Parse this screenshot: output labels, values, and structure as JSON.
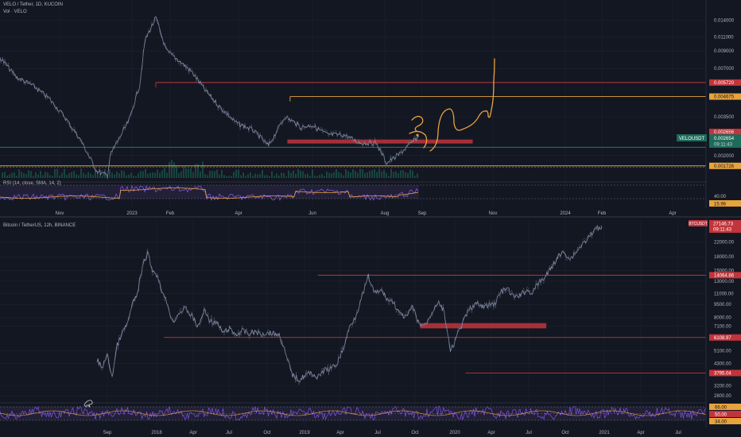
{
  "top_panel": {
    "title": "VELO / Tether, 1D, KUCOIN",
    "volume_label": "Vol · VELO",
    "rsi_label": "RSI (14, close, SMA, 14, 2)",
    "symbol_tag": "VELOUSDT",
    "last_price_tag": "0.002654",
    "countdown_tag": "09:11:43",
    "rsi_value_tag": "15.96",
    "rsi_level_label": "40.00"
  },
  "bottom_panel": {
    "title": "Bitcoin / TetherUS, 12h, BINANCE",
    "symbol_tag": "BTCUSDT",
    "last_price_tag": "27146.73",
    "countdown_tag": "09:11:43",
    "rsi_tags": [
      "66.00",
      "50.00",
      "34.00"
    ]
  },
  "colors": {
    "background": "#131722",
    "grid": "#1f2330",
    "axis_text": "#b2b5be",
    "price_line": "#7f8ba6",
    "red_level": "#c2343b",
    "orange_level": "#e8a33c",
    "support_box": "#c2343b",
    "rsi_line": "#8b5cf6",
    "rsi_sma": "#e8a33c",
    "rsi_band": "#2a2540",
    "volume_bar": "#1e6b5a"
  },
  "chart_data": [
    {
      "type": "line",
      "title": "VELO / Tether, 1D, KUCOIN",
      "scale": "log",
      "x_ticks": [
        "Nov",
        "2023",
        "Feb",
        "Apr",
        "Jun",
        "Aug",
        "Sep",
        "Nov",
        "2024",
        "Feb",
        "Apr"
      ],
      "y_ticks": [
        "0.014000",
        "0.011000",
        "0.009000",
        "0.007000",
        "0.005720",
        "0.004675",
        "0.003500",
        "0.002656",
        "0.002654",
        "0.002000",
        "0.001726"
      ],
      "ylim": [
        0.00145,
        0.0175
      ],
      "x_months": [
        0,
        12.5
      ],
      "series": [
        {
          "x": [
            0,
            0.3,
            0.6,
            0.9,
            1.2,
            1.5,
            1.8,
            2.0,
            2.05,
            2.2,
            2.4,
            2.6,
            2.7,
            2.9,
            3.1,
            3.3,
            3.5,
            3.6,
            3.8,
            4.1,
            4.4,
            4.7,
            5.0,
            5.3,
            5.5,
            5.6,
            5.8,
            6.1,
            6.4,
            6.7,
            7.0,
            7.2,
            7.4,
            7.6,
            7.8
          ],
          "values": [
            0.0082,
            0.0062,
            0.0055,
            0.0046,
            0.0035,
            0.0025,
            0.0016,
            0.0015,
            0.002,
            0.0025,
            0.0033,
            0.0055,
            0.0105,
            0.0145,
            0.009,
            0.008,
            0.007,
            0.0065,
            0.0052,
            0.004,
            0.0032,
            0.0029,
            0.0023,
            0.0035,
            0.0032,
            0.003,
            0.0031,
            0.0027,
            0.0027,
            0.0024,
            0.0024,
            0.0018,
            0.002,
            0.0023,
            0.00265
          ]
        }
      ],
      "levels": [
        {
          "value": 0.00572,
          "label": "0.005720",
          "color": "red",
          "x_start": 2.9
        },
        {
          "value": 0.004675,
          "label": "0.004675",
          "color": "orange",
          "x_start": 5.4
        },
        {
          "value": 0.001726,
          "label": "0.001726",
          "color": "orange",
          "x_start": 0
        }
      ],
      "support_zone": {
        "low": 0.00239,
        "high": 0.00252,
        "x_start": 5.35,
        "x_end": 8.8
      },
      "rsi": {
        "upper": 70,
        "lower": 30,
        "last": 15.96
      }
    },
    {
      "type": "line",
      "title": "Bitcoin / TetherUS, 12h, BINANCE",
      "scale": "log",
      "x_ticks": [
        "Sep",
        "2018",
        "Apr",
        "Jul",
        "Oct",
        "2019",
        "Apr",
        "Jul",
        "Oct",
        "2020",
        "Apr",
        "Jul",
        "Oct",
        "2021",
        "Apr",
        "Jul",
        "Oct"
      ],
      "y_ticks": [
        "22000.00",
        "18000.00",
        "15000.00",
        "14064.86",
        "13000.00",
        "11000.00",
        "9500.00",
        "8000.00",
        "7100.00",
        "6108.97",
        "5100.00",
        "4300.00",
        "3795.04",
        "3200.00",
        "2800.00"
      ],
      "ylim": [
        2600,
        28500
      ],
      "x_months": [
        0,
        50
      ],
      "series": [
        {
          "x": [
            0,
            0.4,
            0.8,
            1.2,
            1.6,
            2.0,
            2.4,
            2.8,
            3.2,
            3.6,
            4.0,
            4.4,
            4.8,
            5.2,
            5.6,
            6.0,
            6.5,
            7.0,
            7.5,
            8.0,
            8.5,
            9.0,
            9.5,
            10.0,
            10.5,
            11.0,
            11.5,
            12.0,
            12.5,
            13.0,
            13.5,
            14.0,
            14.5,
            15.0,
            15.5,
            16.0,
            16.5,
            17.0,
            17.5,
            18.0,
            18.5,
            19.0,
            19.5,
            20.0,
            20.5,
            21.0,
            21.5,
            22.0,
            22.5,
            23.0,
            23.5,
            24.0,
            24.5,
            25.0,
            25.5,
            26.0,
            26.5,
            27.0,
            27.5,
            28.0,
            28.5,
            29.0,
            29.5,
            30.0,
            30.5,
            31.0,
            31.5,
            32.0,
            32.5,
            33.0,
            33.5,
            34.0,
            34.5,
            35.0,
            35.5,
            36.0,
            36.5,
            37.0,
            37.5,
            38.0,
            38.5,
            39.0,
            39.5,
            40.0
          ],
          "values": [
            4500,
            4100,
            4800,
            3600,
            5500,
            6500,
            7300,
            9500,
            11000,
            15500,
            19000,
            15000,
            14000,
            11000,
            9500,
            7500,
            8500,
            9000,
            8200,
            7000,
            8800,
            7600,
            7400,
            6500,
            6900,
            6300,
            6700,
            6400,
            6600,
            6350,
            6550,
            6450,
            6300,
            4700,
            3700,
            3450,
            3700,
            3800,
            3550,
            3950,
            4000,
            4300,
            5200,
            7000,
            8200,
            10500,
            13800,
            11000,
            11500,
            10200,
            9800,
            8300,
            8000,
            9200,
            7300,
            7200,
            8500,
            9800,
            8700,
            5000,
            6200,
            7500,
            8900,
            9600,
            9200,
            9400,
            9600,
            11200,
            11800,
            10500,
            10700,
            11500,
            11100,
            12800,
            13700,
            15500,
            18000,
            19200,
            17500,
            19400,
            21500,
            23500,
            26000,
            27146.73
          ]
        }
      ],
      "levels": [
        {
          "value": 14064.86,
          "label": "14064.86",
          "color": "red",
          "x_start": 17.5
        },
        {
          "value": 6108.97,
          "label": "6108.97",
          "color": "red",
          "x_start": 5.3
        },
        {
          "value": 3795.04,
          "label": "3795.04",
          "color": "red",
          "x_start": 29.2
        }
      ],
      "support_zone": {
        "low": 6900,
        "high": 7400,
        "x_start": 25.6,
        "x_end": 35.6
      },
      "rsi": {
        "upper": 66,
        "middle": 50,
        "lower": 34
      }
    }
  ]
}
